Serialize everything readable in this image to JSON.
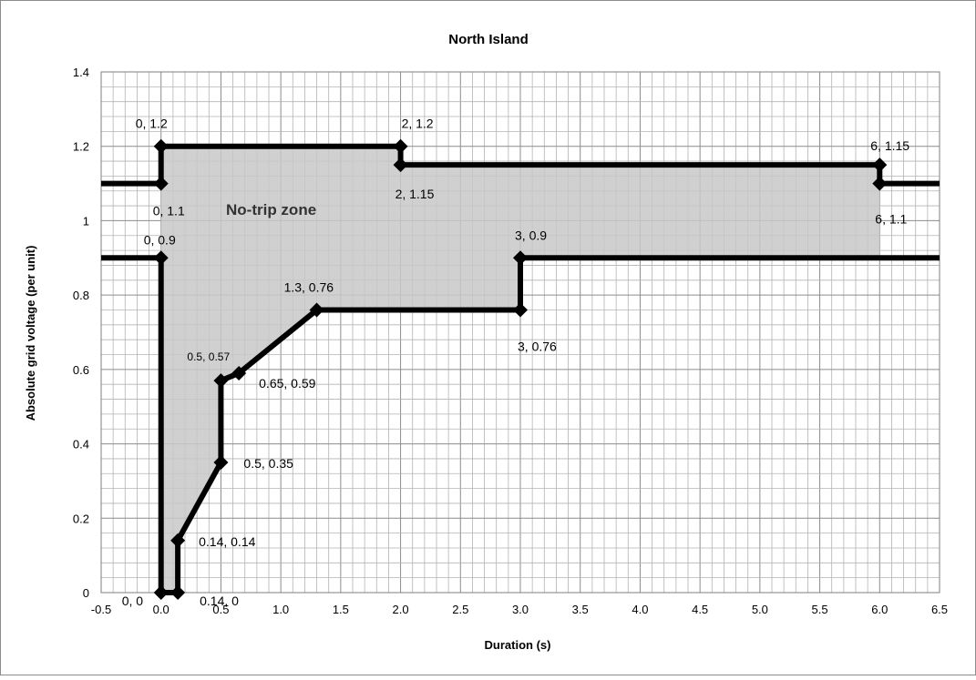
{
  "chart_data": {
    "type": "line",
    "title": "North Island",
    "xlabel": "Duration (s)",
    "ylabel": "Absolute grid voltage  (per unit)",
    "xlim": [
      -0.5,
      6.5
    ],
    "ylim": [
      0,
      1.4
    ],
    "x_ticks": [
      "-0.5",
      "0.0",
      "0.5",
      "1.0",
      "1.5",
      "2.0",
      "2.5",
      "3.0",
      "3.5",
      "4.0",
      "4.5",
      "5.0",
      "5.5",
      "6.0",
      "6.5"
    ],
    "y_ticks": [
      "0",
      "0.2",
      "0.4",
      "0.6",
      "0.8",
      "1",
      "1.2",
      "1.4"
    ],
    "grid": true,
    "annotation": "No-trip zone",
    "upper_curve": [
      [
        -0.5,
        1.1
      ],
      [
        0,
        1.1
      ],
      [
        0,
        1.2
      ],
      [
        2,
        1.2
      ],
      [
        2,
        1.15
      ],
      [
        6,
        1.15
      ],
      [
        6,
        1.1
      ],
      [
        6.5,
        1.1
      ]
    ],
    "lower_curve": [
      [
        -0.5,
        0.9
      ],
      [
        0,
        0.9
      ],
      [
        0,
        0
      ],
      [
        0.14,
        0
      ],
      [
        0.14,
        0.14
      ],
      [
        0.5,
        0.35
      ],
      [
        0.5,
        0.57
      ],
      [
        0.65,
        0.59
      ],
      [
        1.3,
        0.76
      ],
      [
        3,
        0.76
      ],
      [
        3,
        0.9
      ],
      [
        6.5,
        0.9
      ]
    ],
    "points": [
      {
        "x": 0,
        "y": 1.2,
        "label": "0, 1.2"
      },
      {
        "x": 0,
        "y": 1.1,
        "label": "0, 1.1"
      },
      {
        "x": 2,
        "y": 1.2,
        "label": "2, 1.2"
      },
      {
        "x": 2,
        "y": 1.15,
        "label": "2, 1.15"
      },
      {
        "x": 6,
        "y": 1.15,
        "label": "6, 1.15"
      },
      {
        "x": 6,
        "y": 1.1,
        "label": "6, 1.1"
      },
      {
        "x": 0,
        "y": 0.9,
        "label": "0, 0.9"
      },
      {
        "x": 3,
        "y": 0.9,
        "label": "3, 0.9"
      },
      {
        "x": 1.3,
        "y": 0.76,
        "label": "1.3, 0.76"
      },
      {
        "x": 3,
        "y": 0.76,
        "label": "3, 0.76"
      },
      {
        "x": 0.5,
        "y": 0.57,
        "label": "0.5, 0.57"
      },
      {
        "x": 0.65,
        "y": 0.59,
        "label": "0.65, 0.59"
      },
      {
        "x": 0.5,
        "y": 0.35,
        "label": "0.5, 0.35"
      },
      {
        "x": 0.14,
        "y": 0.14,
        "label": "0.14, 0.14"
      },
      {
        "x": 0,
        "y": 0,
        "label": "0, 0"
      },
      {
        "x": 0.14,
        "y": 0,
        "label": "0.14, 0"
      }
    ]
  }
}
